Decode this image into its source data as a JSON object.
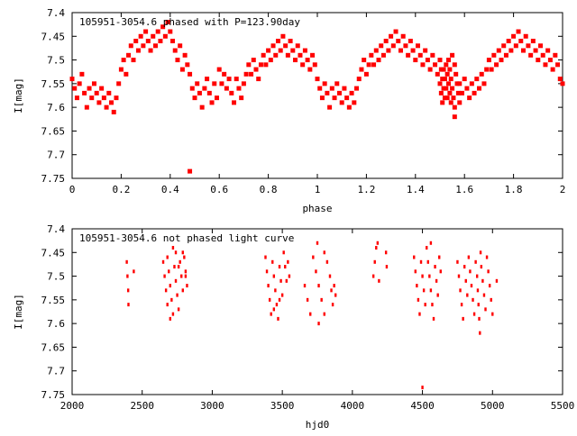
{
  "chart_data": [
    {
      "type": "scatter",
      "title": "105951-3054.6 phased with P=123.90day",
      "xlabel": "phase",
      "ylabel": "I[mag]",
      "xlim": [
        0,
        2
      ],
      "ylim": [
        7.75,
        7.4
      ],
      "y_inverted": true,
      "xticks": [
        "0",
        "0.2",
        "0.4",
        "0.6",
        "0.8",
        "1",
        "1.2",
        "1.4",
        "1.6",
        "1.8",
        "2"
      ],
      "yticks": [
        "7.4",
        "7.45",
        "7.5",
        "7.55",
        "7.6",
        "7.65",
        "7.7",
        "7.75"
      ],
      "marker_color": "#ff0000",
      "points": [
        [
          0.0,
          7.54
        ],
        [
          0.01,
          7.56
        ],
        [
          0.02,
          7.58
        ],
        [
          0.03,
          7.55
        ],
        [
          0.04,
          7.53
        ],
        [
          0.05,
          7.57
        ],
        [
          0.06,
          7.6
        ],
        [
          0.07,
          7.56
        ],
        [
          0.08,
          7.58
        ],
        [
          0.09,
          7.55
        ],
        [
          0.1,
          7.57
        ],
        [
          0.11,
          7.59
        ],
        [
          0.12,
          7.56
        ],
        [
          0.13,
          7.58
        ],
        [
          0.14,
          7.6
        ],
        [
          0.15,
          7.57
        ],
        [
          0.16,
          7.59
        ],
        [
          0.17,
          7.61
        ],
        [
          0.18,
          7.58
        ],
        [
          0.19,
          7.55
        ],
        [
          0.2,
          7.52
        ],
        [
          0.21,
          7.5
        ],
        [
          0.22,
          7.53
        ],
        [
          0.23,
          7.49
        ],
        [
          0.24,
          7.47
        ],
        [
          0.25,
          7.5
        ],
        [
          0.26,
          7.46
        ],
        [
          0.27,
          7.48
        ],
        [
          0.28,
          7.45
        ],
        [
          0.29,
          7.47
        ],
        [
          0.3,
          7.44
        ],
        [
          0.31,
          7.46
        ],
        [
          0.32,
          7.48
        ],
        [
          0.33,
          7.45
        ],
        [
          0.34,
          7.47
        ],
        [
          0.35,
          7.44
        ],
        [
          0.36,
          7.46
        ],
        [
          0.37,
          7.43
        ],
        [
          0.38,
          7.45
        ],
        [
          0.39,
          7.42
        ],
        [
          0.4,
          7.44
        ],
        [
          0.41,
          7.46
        ],
        [
          0.42,
          7.48
        ],
        [
          0.43,
          7.5
        ],
        [
          0.44,
          7.47
        ],
        [
          0.45,
          7.52
        ],
        [
          0.46,
          7.49
        ],
        [
          0.47,
          7.51
        ],
        [
          0.48,
          7.53
        ],
        [
          0.49,
          7.56
        ],
        [
          0.5,
          7.58
        ],
        [
          0.51,
          7.55
        ],
        [
          0.52,
          7.57
        ],
        [
          0.53,
          7.6
        ],
        [
          0.54,
          7.56
        ],
        [
          0.55,
          7.54
        ],
        [
          0.56,
          7.57
        ],
        [
          0.57,
          7.59
        ],
        [
          0.58,
          7.55
        ],
        [
          0.59,
          7.58
        ],
        [
          0.48,
          7.735
        ],
        [
          0.6,
          7.52
        ],
        [
          0.61,
          7.55
        ],
        [
          0.62,
          7.53
        ],
        [
          0.63,
          7.56
        ],
        [
          0.64,
          7.54
        ],
        [
          0.65,
          7.57
        ],
        [
          0.66,
          7.59
        ],
        [
          0.67,
          7.54
        ],
        [
          0.68,
          7.56
        ],
        [
          0.69,
          7.58
        ],
        [
          0.7,
          7.55
        ],
        [
          0.71,
          7.53
        ],
        [
          0.72,
          7.51
        ],
        [
          0.73,
          7.53
        ],
        [
          0.74,
          7.5
        ],
        [
          0.75,
          7.52
        ],
        [
          0.76,
          7.54
        ],
        [
          0.77,
          7.51
        ],
        [
          0.78,
          7.49
        ],
        [
          0.79,
          7.51
        ],
        [
          0.8,
          7.48
        ],
        [
          0.81,
          7.5
        ],
        [
          0.82,
          7.47
        ],
        [
          0.83,
          7.49
        ],
        [
          0.84,
          7.46
        ],
        [
          0.85,
          7.48
        ],
        [
          0.86,
          7.45
        ],
        [
          0.87,
          7.47
        ],
        [
          0.88,
          7.49
        ],
        [
          0.89,
          7.46
        ],
        [
          0.9,
          7.48
        ],
        [
          0.91,
          7.5
        ],
        [
          0.92,
          7.47
        ],
        [
          0.93,
          7.49
        ],
        [
          0.94,
          7.51
        ],
        [
          0.95,
          7.48
        ],
        [
          0.96,
          7.5
        ],
        [
          0.97,
          7.52
        ],
        [
          0.98,
          7.49
        ],
        [
          0.99,
          7.51
        ],
        [
          1.0,
          7.54
        ],
        [
          1.01,
          7.56
        ],
        [
          1.02,
          7.58
        ],
        [
          1.03,
          7.55
        ],
        [
          1.04,
          7.57
        ],
        [
          1.05,
          7.6
        ],
        [
          1.06,
          7.56
        ],
        [
          1.07,
          7.58
        ],
        [
          1.08,
          7.55
        ],
        [
          1.09,
          7.57
        ],
        [
          1.1,
          7.59
        ],
        [
          1.11,
          7.56
        ],
        [
          1.12,
          7.58
        ],
        [
          1.13,
          7.6
        ],
        [
          1.14,
          7.57
        ],
        [
          1.15,
          7.59
        ],
        [
          1.16,
          7.56
        ],
        [
          1.17,
          7.54
        ],
        [
          1.18,
          7.52
        ],
        [
          1.19,
          7.5
        ],
        [
          1.2,
          7.53
        ],
        [
          1.21,
          7.51
        ],
        [
          1.22,
          7.49
        ],
        [
          1.23,
          7.51
        ],
        [
          1.24,
          7.48
        ],
        [
          1.25,
          7.5
        ],
        [
          1.26,
          7.47
        ],
        [
          1.27,
          7.49
        ],
        [
          1.28,
          7.46
        ],
        [
          1.29,
          7.48
        ],
        [
          1.3,
          7.45
        ],
        [
          1.31,
          7.47
        ],
        [
          1.32,
          7.44
        ],
        [
          1.33,
          7.46
        ],
        [
          1.34,
          7.48
        ],
        [
          1.35,
          7.45
        ],
        [
          1.36,
          7.47
        ],
        [
          1.37,
          7.49
        ],
        [
          1.38,
          7.46
        ],
        [
          1.39,
          7.48
        ],
        [
          1.4,
          7.5
        ],
        [
          1.41,
          7.47
        ],
        [
          1.42,
          7.49
        ],
        [
          1.43,
          7.51
        ],
        [
          1.44,
          7.48
        ],
        [
          1.45,
          7.5
        ],
        [
          1.46,
          7.52
        ],
        [
          1.47,
          7.49
        ],
        [
          1.48,
          7.51
        ],
        [
          1.49,
          7.53
        ],
        [
          1.5,
          7.5
        ],
        [
          1.505,
          7.52
        ],
        [
          1.51,
          7.54
        ],
        [
          1.515,
          7.56
        ],
        [
          1.52,
          7.58
        ],
        [
          1.525,
          7.51
        ],
        [
          1.53,
          7.53
        ],
        [
          1.535,
          7.55
        ],
        [
          1.54,
          7.57
        ],
        [
          1.545,
          7.59
        ],
        [
          1.5,
          7.55
        ],
        [
          1.505,
          7.57
        ],
        [
          1.51,
          7.59
        ],
        [
          1.515,
          7.52
        ],
        [
          1.52,
          7.54
        ],
        [
          1.525,
          7.56
        ],
        [
          1.53,
          7.58
        ],
        [
          1.535,
          7.5
        ],
        [
          1.54,
          7.52
        ],
        [
          1.545,
          7.54
        ],
        [
          1.55,
          7.56
        ],
        [
          1.555,
          7.58
        ],
        [
          1.56,
          7.6
        ],
        [
          1.565,
          7.53
        ],
        [
          1.57,
          7.55
        ],
        [
          1.575,
          7.57
        ],
        [
          1.58,
          7.59
        ],
        [
          1.56,
          7.62
        ],
        [
          1.55,
          7.49
        ],
        [
          1.56,
          7.51
        ],
        [
          1.58,
          7.55
        ],
        [
          1.59,
          7.57
        ],
        [
          1.6,
          7.54
        ],
        [
          1.61,
          7.56
        ],
        [
          1.62,
          7.58
        ],
        [
          1.63,
          7.55
        ],
        [
          1.64,
          7.57
        ],
        [
          1.65,
          7.54
        ],
        [
          1.66,
          7.56
        ],
        [
          1.67,
          7.53
        ],
        [
          1.68,
          7.55
        ],
        [
          1.69,
          7.52
        ],
        [
          1.7,
          7.5
        ],
        [
          1.71,
          7.52
        ],
        [
          1.72,
          7.49
        ],
        [
          1.73,
          7.51
        ],
        [
          1.74,
          7.48
        ],
        [
          1.75,
          7.5
        ],
        [
          1.76,
          7.47
        ],
        [
          1.77,
          7.49
        ],
        [
          1.78,
          7.46
        ],
        [
          1.79,
          7.48
        ],
        [
          1.8,
          7.45
        ],
        [
          1.81,
          7.47
        ],
        [
          1.82,
          7.44
        ],
        [
          1.83,
          7.46
        ],
        [
          1.84,
          7.48
        ],
        [
          1.85,
          7.45
        ],
        [
          1.86,
          7.47
        ],
        [
          1.87,
          7.49
        ],
        [
          1.88,
          7.46
        ],
        [
          1.89,
          7.48
        ],
        [
          1.9,
          7.5
        ],
        [
          1.91,
          7.47
        ],
        [
          1.92,
          7.49
        ],
        [
          1.93,
          7.51
        ],
        [
          1.94,
          7.48
        ],
        [
          1.95,
          7.5
        ],
        [
          1.96,
          7.52
        ],
        [
          1.97,
          7.49
        ],
        [
          1.98,
          7.51
        ],
        [
          1.99,
          7.54
        ],
        [
          2.0,
          7.55
        ]
      ]
    },
    {
      "type": "scatter",
      "title": "105951-3054.6 not phased light curve",
      "xlabel": "hjd0",
      "ylabel": "I[mag]",
      "xlim": [
        2000,
        5500
      ],
      "ylim": [
        7.75,
        7.4
      ],
      "y_inverted": true,
      "xticks": [
        "2000",
        "2500",
        "3000",
        "3500",
        "4000",
        "4500",
        "5000",
        "5500"
      ],
      "yticks": [
        "7.4",
        "7.45",
        "7.5",
        "7.55",
        "7.6",
        "7.65",
        "7.7",
        "7.75"
      ],
      "marker_color": "#ff0000",
      "points": [
        [
          2390,
          7.47
        ],
        [
          2395,
          7.5
        ],
        [
          2400,
          7.53
        ],
        [
          2402,
          7.56
        ],
        [
          2440,
          7.49
        ],
        [
          2650,
          7.47
        ],
        [
          2660,
          7.5
        ],
        [
          2670,
          7.53
        ],
        [
          2680,
          7.46
        ],
        [
          2690,
          7.49
        ],
        [
          2700,
          7.52
        ],
        [
          2710,
          7.55
        ],
        [
          2720,
          7.44
        ],
        [
          2730,
          7.48
        ],
        [
          2740,
          7.51
        ],
        [
          2750,
          7.54
        ],
        [
          2760,
          7.57
        ],
        [
          2770,
          7.47
        ],
        [
          2780,
          7.5
        ],
        [
          2790,
          7.53
        ],
        [
          2800,
          7.46
        ],
        [
          2810,
          7.49
        ],
        [
          2820,
          7.52
        ],
        [
          2700,
          7.59
        ],
        [
          2720,
          7.58
        ],
        [
          2680,
          7.56
        ],
        [
          2740,
          7.45
        ],
        [
          2760,
          7.48
        ],
        [
          2790,
          7.45
        ],
        [
          2810,
          7.5
        ],
        [
          3380,
          7.46
        ],
        [
          3390,
          7.49
        ],
        [
          3400,
          7.52
        ],
        [
          3410,
          7.55
        ],
        [
          3420,
          7.58
        ],
        [
          3430,
          7.47
        ],
        [
          3440,
          7.5
        ],
        [
          3450,
          7.53
        ],
        [
          3460,
          7.56
        ],
        [
          3470,
          7.59
        ],
        [
          3480,
          7.48
        ],
        [
          3490,
          7.51
        ],
        [
          3500,
          7.54
        ],
        [
          3510,
          7.45
        ],
        [
          3520,
          7.48
        ],
        [
          3530,
          7.51
        ],
        [
          3540,
          7.47
        ],
        [
          3550,
          7.5
        ],
        [
          3440,
          7.57
        ],
        [
          3480,
          7.55
        ],
        [
          3660,
          7.52
        ],
        [
          3680,
          7.55
        ],
        [
          3700,
          7.58
        ],
        [
          3720,
          7.46
        ],
        [
          3740,
          7.49
        ],
        [
          3760,
          7.52
        ],
        [
          3780,
          7.55
        ],
        [
          3800,
          7.58
        ],
        [
          3820,
          7.47
        ],
        [
          3840,
          7.5
        ],
        [
          3850,
          7.53
        ],
        [
          3860,
          7.56
        ],
        [
          3870,
          7.52
        ],
        [
          3880,
          7.54
        ],
        [
          3750,
          7.43
        ],
        [
          3760,
          7.6
        ],
        [
          3800,
          7.45
        ],
        [
          4150,
          7.5
        ],
        [
          4160,
          7.47
        ],
        [
          4170,
          7.44
        ],
        [
          4180,
          7.43
        ],
        [
          4190,
          7.51
        ],
        [
          4240,
          7.45
        ],
        [
          4245,
          7.48
        ],
        [
          4440,
          7.46
        ],
        [
          4450,
          7.49
        ],
        [
          4460,
          7.52
        ],
        [
          4470,
          7.55
        ],
        [
          4480,
          7.58
        ],
        [
          4490,
          7.47
        ],
        [
          4500,
          7.5
        ],
        [
          4510,
          7.53
        ],
        [
          4520,
          7.56
        ],
        [
          4530,
          7.44
        ],
        [
          4540,
          7.47
        ],
        [
          4550,
          7.5
        ],
        [
          4560,
          7.53
        ],
        [
          4570,
          7.56
        ],
        [
          4580,
          7.59
        ],
        [
          4590,
          7.48
        ],
        [
          4600,
          7.51
        ],
        [
          4610,
          7.54
        ],
        [
          4620,
          7.46
        ],
        [
          4630,
          7.49
        ],
        [
          4500,
          7.735
        ],
        [
          4560,
          7.43
        ],
        [
          4750,
          7.47
        ],
        [
          4760,
          7.5
        ],
        [
          4770,
          7.53
        ],
        [
          4780,
          7.56
        ],
        [
          4790,
          7.59
        ],
        [
          4800,
          7.48
        ],
        [
          4810,
          7.51
        ],
        [
          4820,
          7.54
        ],
        [
          4830,
          7.46
        ],
        [
          4840,
          7.49
        ],
        [
          4850,
          7.52
        ],
        [
          4860,
          7.55
        ],
        [
          4870,
          7.58
        ],
        [
          4880,
          7.47
        ],
        [
          4890,
          7.5
        ],
        [
          4895,
          7.53
        ],
        [
          4900,
          7.56
        ],
        [
          4905,
          7.59
        ],
        [
          4910,
          7.62
        ],
        [
          4915,
          7.45
        ],
        [
          4920,
          7.48
        ],
        [
          4930,
          7.51
        ],
        [
          4940,
          7.54
        ],
        [
          4950,
          7.57
        ],
        [
          4960,
          7.46
        ],
        [
          4970,
          7.49
        ],
        [
          4980,
          7.52
        ],
        [
          4990,
          7.55
        ],
        [
          5000,
          7.58
        ],
        [
          5030,
          7.51
        ]
      ]
    }
  ]
}
